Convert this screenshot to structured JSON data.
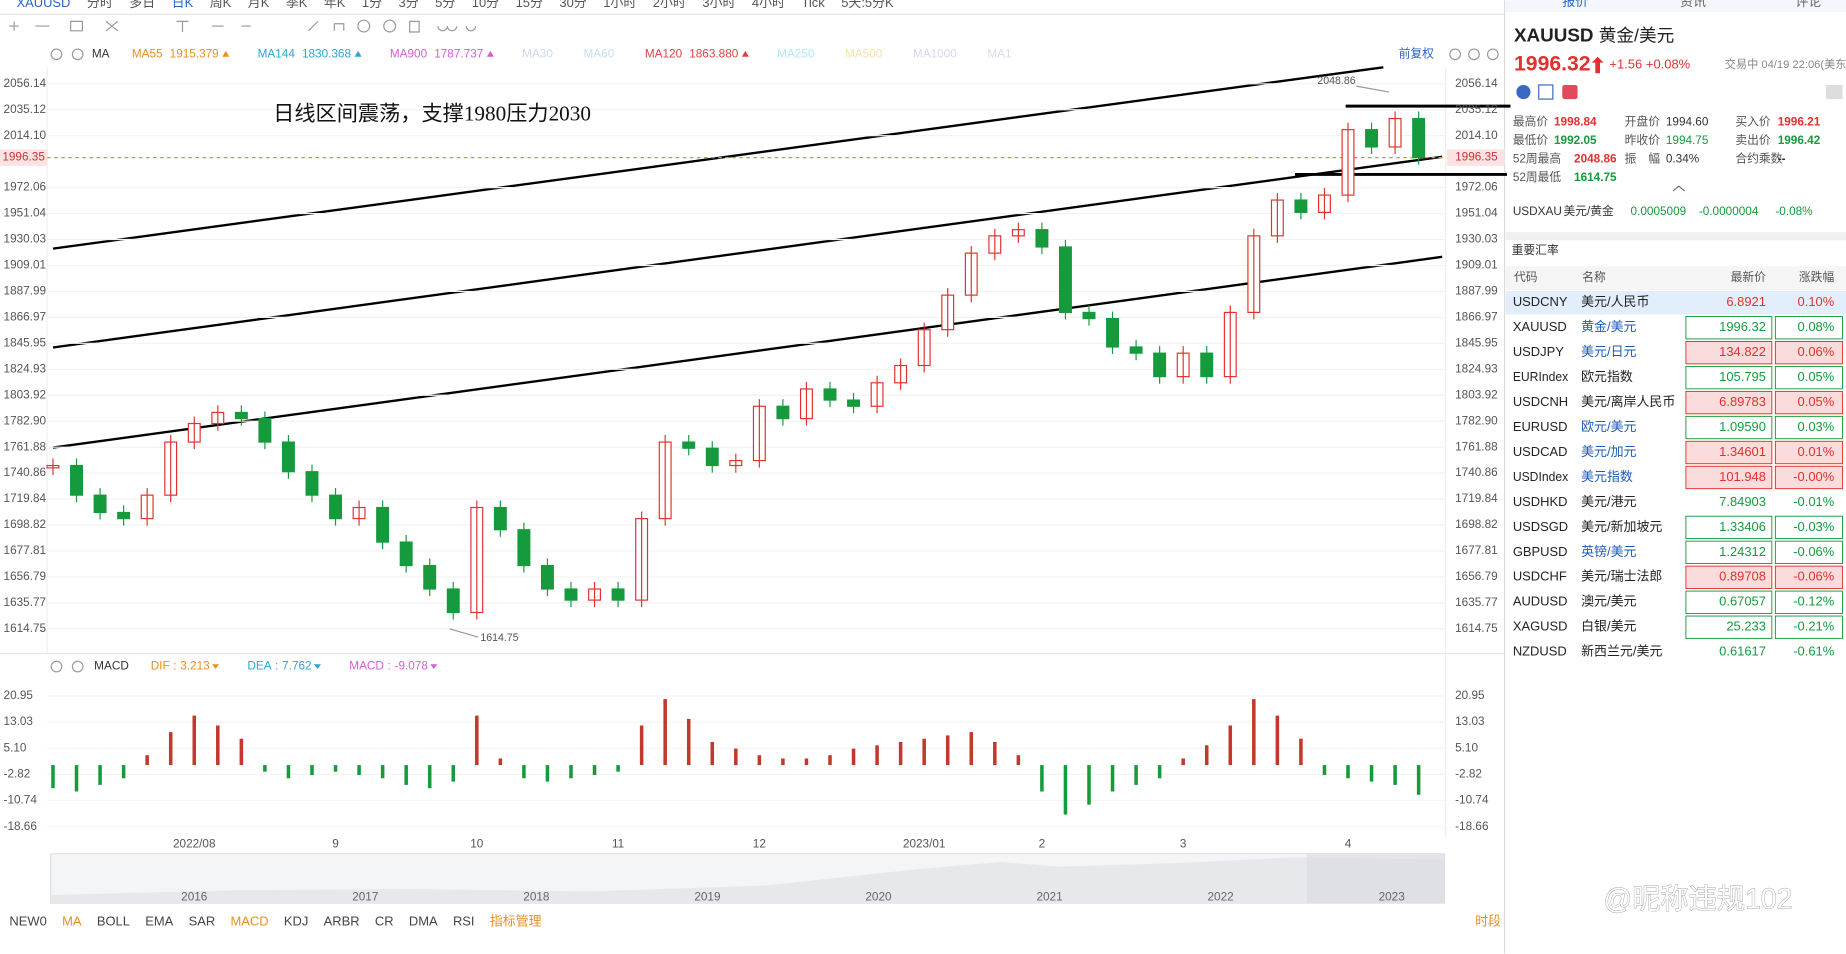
{
  "toolbar": {
    "items": [
      "XAUUSD",
      "分时",
      "多日",
      "日K",
      "周K",
      "月K",
      "季K",
      "年K",
      "1分",
      "3分",
      "5分",
      "10分",
      "15分",
      "30分",
      "1小时",
      "2小时",
      "3小时",
      "4小时",
      "Tick",
      "5天:5分K"
    ]
  },
  "chart_data": [
    {
      "type": "candlestick",
      "ma_title": "MA",
      "ma_legend": [
        {
          "name": "MA55",
          "value": 1915.379,
          "color": "#e8901e"
        },
        {
          "name": "MA144",
          "value": 1830.368,
          "color": "#2aa5d8"
        },
        {
          "name": "MA900",
          "value": 1787.737,
          "color": "#d45ed4"
        },
        {
          "name": "MA30",
          "color": "#bccbe6"
        },
        {
          "name": "MA60",
          "color": "#a9d3e3"
        },
        {
          "name": "MA120",
          "value": 1863.88,
          "value_label": "1863.880",
          "color": "#e04040"
        },
        {
          "name": "MA250",
          "color": "#93dcf2"
        },
        {
          "name": "MA500",
          "color": "#f0d58a"
        },
        {
          "name": "MA1000",
          "color": "#cbc3f0"
        },
        {
          "name": "MA1",
          "color": "#c8d0e0"
        }
      ],
      "adjust_label": "前复权",
      "annotation": "日线区间震荡，支撑1980压力2030",
      "high_label": 2048.86,
      "low_label": 1614.75,
      "current_price": 1996.35,
      "up_color": "#e0312f",
      "down_color": "#159a3c",
      "values": [
        1747,
        1723,
        1709,
        1704,
        1723,
        1766,
        1781,
        1790,
        1785,
        1766,
        1742,
        1723,
        1704,
        1713,
        1685,
        1666,
        1647,
        1628,
        1713,
        1695,
        1666,
        1647,
        1638,
        1647,
        1638,
        1704,
        1766,
        1761,
        1747,
        1751,
        1795,
        1785,
        1809,
        1800,
        1795,
        1814,
        1828,
        1857,
        1885,
        1919,
        1933,
        1938,
        1924,
        1871,
        1866,
        1843,
        1838,
        1819,
        1838,
        1819,
        1871,
        1933,
        1962,
        1952,
        1966,
        2019,
        2005,
        2028,
        1996.35
      ],
      "ylim": [
        1596.6,
        2069.5
      ],
      "yticks": [
        2056.14,
        2035.12,
        {
          "value": 2014.1,
          "label": "2014.10"
        },
        1972.06,
        1951.04,
        1930.03,
        1909.01,
        1887.99,
        1866.97,
        1845.95,
        1824.93,
        1803.92,
        {
          "value": 1782.9,
          "label": "1782.90"
        },
        1761.88,
        1740.86,
        1719.84,
        1698.82,
        1677.81,
        1656.79,
        1635.77,
        1614.75
      ],
      "grid": true
    },
    {
      "type": "bar",
      "title": "MACD",
      "legend": [
        {
          "name": "DIF",
          "value": 3.213,
          "color": "#e8901e"
        },
        {
          "name": "DEA",
          "value": 7.762,
          "color": "#2aa5d8"
        },
        {
          "name": "MACD",
          "value": -9.078,
          "color": "#d45ed4"
        }
      ],
      "pos_color": "#c0392b",
      "neg_color": "#159a3c",
      "categories": [
        null,
        null,
        null,
        null,
        null,
        null,
        "2022/08",
        null,
        null,
        null,
        null,
        null,
        "9",
        null,
        null,
        null,
        null,
        null,
        "10",
        null,
        null,
        null,
        null,
        null,
        "11",
        null,
        null,
        null,
        null,
        null,
        "12",
        null,
        null,
        null,
        null,
        null,
        null,
        "2023/01",
        null,
        null,
        null,
        null,
        "2",
        null,
        null,
        null,
        null,
        null,
        "3",
        null,
        null,
        null,
        null,
        null,
        null,
        "4",
        null,
        null,
        null
      ],
      "values": [
        -7,
        -8,
        -6,
        -4,
        3,
        10,
        15,
        12,
        8,
        -2,
        -4,
        -3,
        -2,
        -3,
        -4,
        -6,
        -7,
        -5,
        15,
        2,
        -4,
        -5,
        -4,
        -3,
        -2,
        12,
        20,
        14,
        7,
        5,
        3,
        2,
        2,
        3,
        5,
        6,
        7,
        8,
        9,
        10,
        7,
        3,
        -8,
        -15,
        -12,
        -8,
        -6,
        -4,
        2,
        6,
        12,
        20,
        15,
        8,
        -3,
        -4,
        -5,
        -6,
        -9
      ],
      "ylim": [
        -22.23,
        25.59
      ],
      "yticks": [
        20.95,
        13.03,
        {
          "value": 5.1,
          "label": "5.10"
        },
        -2.82,
        -10.74,
        -18.66
      ]
    }
  ],
  "navigator": {
    "years": [
      "2016",
      "2017",
      "2018",
      "2019",
      "2020",
      "2021",
      "2022",
      "2023"
    ]
  },
  "indicator_tabs": {
    "items": [
      {
        "label": "NEW0"
      },
      {
        "label": "MA",
        "active": true
      },
      {
        "label": "BOLL"
      },
      {
        "label": "EMA"
      },
      {
        "label": "SAR"
      },
      {
        "label": "MACD",
        "active": true
      },
      {
        "label": "KDJ"
      },
      {
        "label": "ARBR"
      },
      {
        "label": "CR"
      },
      {
        "label": "DMA"
      },
      {
        "label": "RSI"
      }
    ],
    "manage": "指标管理",
    "period": "时段"
  },
  "quote_panel": {
    "tabs": [
      "报价",
      "资讯",
      "评论"
    ],
    "symbol": "XAUUSD",
    "name": "黄金/美元",
    "price": "1996.32",
    "change": "+1.56",
    "change_pct": "+0.08%",
    "status": "交易中 04/19 22:06(美东",
    "stats": [
      [
        "最高价",
        "1998.84",
        "开盘价",
        "1994.60",
        "买入价",
        "1996.21"
      ],
      [
        "最低价",
        "1992.05",
        "昨收价",
        "1994.75",
        "卖出价",
        "1996.42"
      ],
      [
        "52周最高",
        "2048.86",
        "振　幅",
        "0.34%",
        "合约乘数",
        "--"
      ],
      [
        "52周最低",
        "1614.75"
      ]
    ],
    "inverse": [
      "USDXAU",
      "美元/黄金",
      "0.0005009",
      "-0.0000004",
      "-0.08%"
    ],
    "section": "重要汇率",
    "columns": [
      "代码",
      "名称",
      "最新价",
      "涨跌幅"
    ],
    "rows": [
      {
        "code": "USDCNY",
        "name": "美元/人民币",
        "price": "6.8921",
        "change": "0.10%",
        "color": "#e0312f",
        "selected": true
      },
      {
        "code": "XAUUSD",
        "name": "黄金/美元",
        "price": "1996.32",
        "change": "0.08%",
        "color": "#159a3c",
        "boxed": true,
        "name_color": "#1e5bb8"
      },
      {
        "code": "USDJPY",
        "name": "美元/日元",
        "price": "134.822",
        "change": "0.06%",
        "color": "#e0312f",
        "boxed": true,
        "name_color": "#1e5bb8"
      },
      {
        "code": "EURIndex",
        "name": "欧元指数",
        "price": "105.795",
        "change": "0.05%",
        "color": "#159a3c",
        "boxed": true
      },
      {
        "code": "USDCNH",
        "name": "美元/离岸人民币",
        "price": "6.89783",
        "change": "0.05%",
        "color": "#e0312f",
        "boxed": true
      },
      {
        "code": "EURUSD",
        "name": "欧元/美元",
        "price": "1.09590",
        "change": "0.03%",
        "color": "#159a3c",
        "boxed": true,
        "name_color": "#1e5bb8"
      },
      {
        "code": "USDCAD",
        "name": "美元/加元",
        "price": "1.34601",
        "change": "0.01%",
        "color": "#e0312f",
        "boxed": true,
        "name_color": "#1e5bb8"
      },
      {
        "code": "USDIndex",
        "name": "美元指数",
        "price": "101.948",
        "change": "-0.00%",
        "color": "#e0312f",
        "boxed": true,
        "name_color": "#1e5bb8"
      },
      {
        "code": "USDHKD",
        "name": "美元/港元",
        "price": "7.84903",
        "change": "-0.01%",
        "color": "#159a3c"
      },
      {
        "code": "USDSGD",
        "name": "美元/新加坡元",
        "price": "1.33406",
        "change": "-0.03%",
        "color": "#159a3c",
        "boxed": true
      },
      {
        "code": "GBPUSD",
        "name": "英镑/美元",
        "price": "1.24312",
        "change": "-0.06%",
        "color": "#159a3c",
        "boxed": true,
        "name_color": "#1e5bb8"
      },
      {
        "code": "USDCHF",
        "name": "美元/瑞士法郎",
        "price": "0.89708",
        "change": "-0.06%",
        "color": "#e0312f",
        "boxed": true
      },
      {
        "code": "AUDUSD",
        "name": "澳元/美元",
        "price": "0.67057",
        "change": "-0.12%",
        "color": "#159a3c",
        "boxed": true
      },
      {
        "code": "XAGUSD",
        "name": "白银/美元",
        "price": "25.233",
        "change": "-0.21%",
        "color": "#159a3c",
        "boxed": true
      },
      {
        "code": "NZDUSD",
        "name": "新西兰元/美元",
        "price": "0.61617",
        "change": "-0.61%",
        "color": "#159a3c"
      }
    ]
  },
  "watermark": "@昵称违规102"
}
